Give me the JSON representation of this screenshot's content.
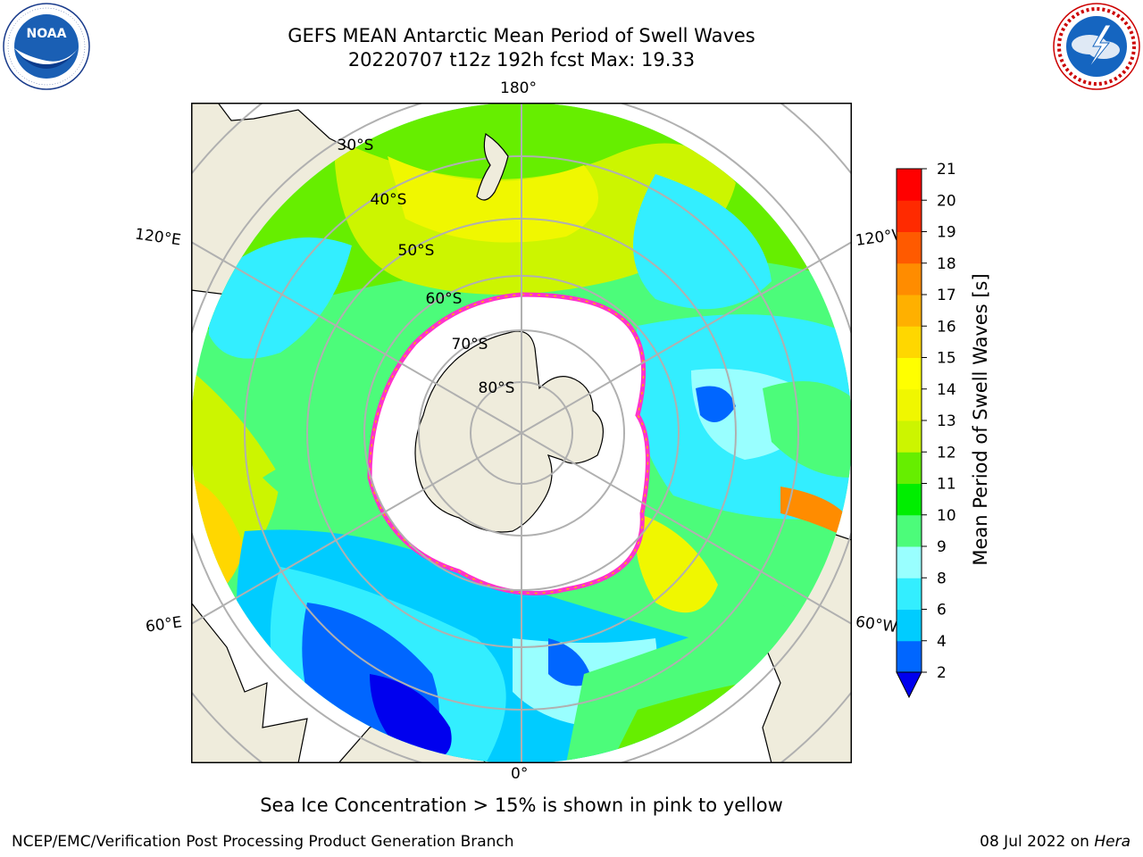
{
  "title": {
    "line1": "GEFS MEAN Antarctic Mean Period of Swell Waves",
    "line2": "20220707 t12z 192h fcst   Max: 19.33"
  },
  "logos": {
    "noaa": {
      "text": "NOAA",
      "ring_text": "NATIONAL OCEANIC AND ATMOSPHERIC ADMINISTRATION · U.S. DEPARTMENT OF COMMERCE"
    },
    "nws": {
      "ring_text": "NATIONAL WEATHER SERVICE"
    }
  },
  "map": {
    "projection": "south-polar-stereographic",
    "longitude_labels": {
      "top": "180°",
      "bottom": "0°",
      "left_upper": "120°E",
      "left_lower": "60°E",
      "right_upper": "120°W",
      "right_lower": "60°W"
    },
    "latitude_labels": [
      "30°S",
      "40°S",
      "50°S",
      "60°S",
      "70°S",
      "80°S"
    ],
    "colors": {
      "land": "#efecdc",
      "ice": "#ffffff",
      "ice_edge": "#ff33cc",
      "grid": "#b0b0b0"
    }
  },
  "colorbar": {
    "label": "Mean Period of Swell Waves [s]",
    "ticks": [
      "2",
      "4",
      "6",
      "8",
      "9",
      "10",
      "11",
      "12",
      "13",
      "14",
      "15",
      "16",
      "17",
      "18",
      "19",
      "20",
      "21"
    ],
    "colors": [
      "#0066ff",
      "#00ccff",
      "#33eeff",
      "#99ffff",
      "#4cfc7a",
      "#00ee00",
      "#66ee00",
      "#ccf500",
      "#f0f700",
      "#ffff00",
      "#ffd700",
      "#ffb000",
      "#ff8c00",
      "#ff5a00",
      "#ff2a00",
      "#ff0000"
    ],
    "extend_color": "#0000ee"
  },
  "ice_note": "Sea Ice Concentration > 15% is shown in pink to yellow",
  "footer": {
    "left": "NCEP/EMC/Verification Post Processing Product Generation Branch",
    "right_date": "08 Jul 2022 on",
    "right_host": "Hera"
  }
}
